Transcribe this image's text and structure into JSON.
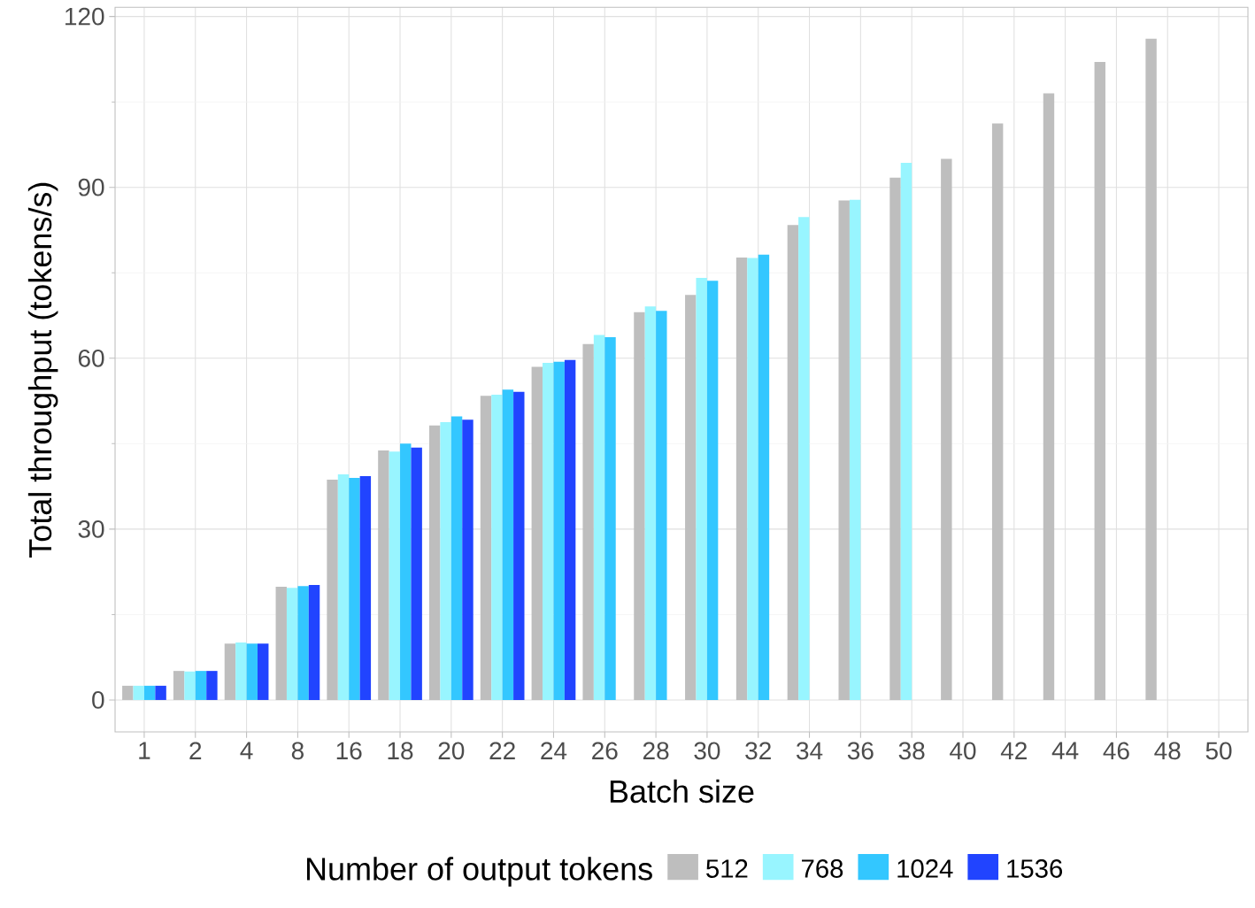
{
  "chart_data": {
    "type": "bar",
    "xlabel": "Batch size",
    "ylabel": "Total throughput (tokens/s)",
    "legend_title": "Number of output tokens",
    "categories": [
      "1",
      "2",
      "4",
      "8",
      "16",
      "18",
      "20",
      "22",
      "24",
      "26",
      "28",
      "30",
      "32",
      "34",
      "36",
      "38",
      "40",
      "42",
      "44",
      "46",
      "48",
      "50"
    ],
    "series": [
      {
        "name": "512",
        "color": "#bebebe",
        "values": [
          2.5,
          5.1,
          9.9,
          19.9,
          38.7,
          43.8,
          48.2,
          53.4,
          58.5,
          62.5,
          68.1,
          71.1,
          77.7,
          83.4,
          87.7,
          91.7,
          95.0,
          101.2,
          106.5,
          112.0,
          116.1,
          null
        ]
      },
      {
        "name": "768",
        "color": "#98f5ff",
        "values": [
          2.5,
          5.0,
          10.1,
          19.7,
          39.6,
          43.6,
          48.8,
          53.6,
          59.2,
          64.1,
          69.1,
          74.1,
          77.6,
          84.8,
          87.8,
          94.3,
          null,
          null,
          null,
          null,
          null,
          null
        ]
      },
      {
        "name": "1024",
        "color": "#33c7ff",
        "values": [
          2.5,
          5.1,
          9.9,
          20.0,
          39.0,
          45.0,
          49.8,
          54.5,
          59.4,
          63.7,
          68.3,
          73.6,
          78.2,
          null,
          null,
          null,
          null,
          null,
          null,
          null,
          null,
          null
        ]
      },
      {
        "name": "1536",
        "color": "#2144ff",
        "values": [
          2.5,
          5.1,
          9.9,
          20.2,
          39.3,
          44.3,
          49.2,
          54.1,
          59.7,
          null,
          null,
          null,
          null,
          null,
          null,
          null,
          null,
          null,
          null,
          null,
          null,
          null
        ]
      }
    ],
    "ylim": [
      -5.6,
      121.6
    ],
    "yticks": [
      0,
      30,
      60,
      90,
      120
    ],
    "grid": true,
    "legend": "bottom"
  }
}
